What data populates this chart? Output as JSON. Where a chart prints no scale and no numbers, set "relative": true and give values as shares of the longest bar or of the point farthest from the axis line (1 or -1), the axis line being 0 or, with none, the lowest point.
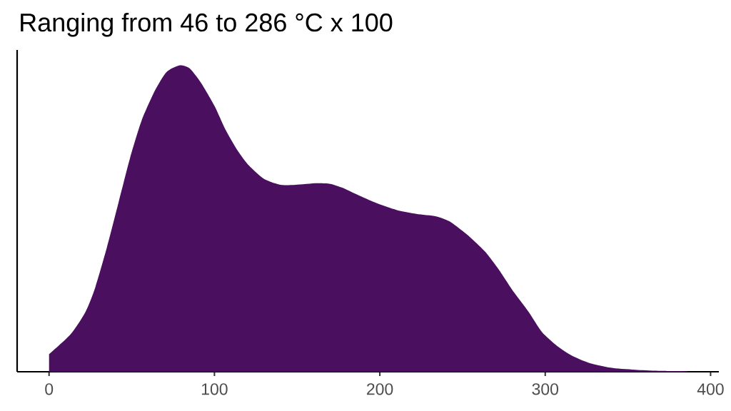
{
  "chart_data": {
    "type": "area",
    "title": "Ranging from 46 to 286 °C x 100",
    "relative": true,
    "color": "#4a0f5e",
    "tick_labels": "x",
    "xlim": [
      -19.3,
      405
    ],
    "xticks": [
      0,
      100,
      200,
      300,
      400
    ],
    "x": [
      0,
      13,
      22,
      28,
      35,
      42,
      49,
      56,
      64,
      71,
      79,
      85,
      92,
      100,
      107,
      114,
      121,
      130,
      140,
      149,
      162,
      170,
      177,
      187,
      199,
      210,
      222,
      234,
      242,
      251,
      256,
      264,
      272,
      281,
      290,
      298,
      307,
      316,
      327,
      341,
      356,
      370,
      386
    ],
    "values": [
      0.057,
      0.122,
      0.195,
      0.276,
      0.406,
      0.552,
      0.698,
      0.82,
      0.917,
      0.978,
      1.0,
      0.99,
      0.942,
      0.868,
      0.787,
      0.722,
      0.672,
      0.629,
      0.61,
      0.61,
      0.615,
      0.613,
      0.601,
      0.576,
      0.548,
      0.528,
      0.515,
      0.507,
      0.491,
      0.455,
      0.432,
      0.39,
      0.333,
      0.26,
      0.195,
      0.13,
      0.085,
      0.053,
      0.028,
      0.012,
      0.006,
      0.003,
      0.002
    ]
  }
}
